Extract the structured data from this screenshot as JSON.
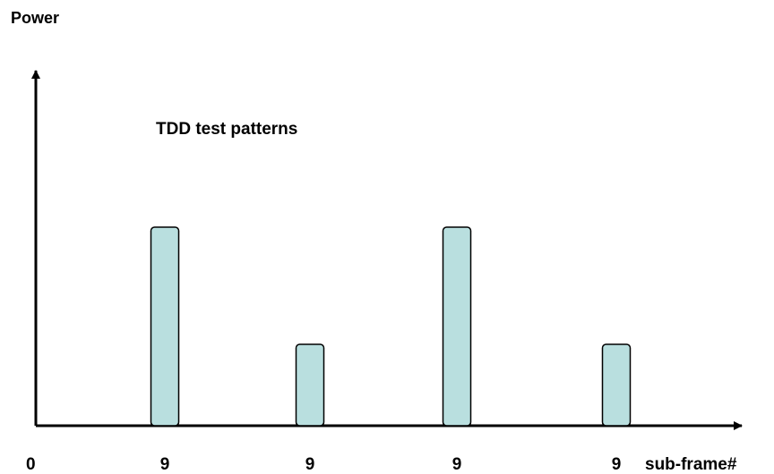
{
  "diagram": {
    "y_axis_label": "Power",
    "x_axis_label": "sub-frame#",
    "annotation": "TDD test patterns",
    "bar_color": "#b9dfdf",
    "stroke_color": "#000000"
  },
  "chart_data": {
    "type": "bar",
    "title": "TDD test patterns",
    "xlabel": "sub-frame#",
    "ylabel": "Power",
    "grid": false,
    "legend": "none",
    "origin_label": "0",
    "bars": [
      {
        "label": "9",
        "level": "high"
      },
      {
        "label": "9",
        "level": "low"
      },
      {
        "label": "9",
        "level": "high"
      },
      {
        "label": "9",
        "level": "low"
      }
    ]
  }
}
